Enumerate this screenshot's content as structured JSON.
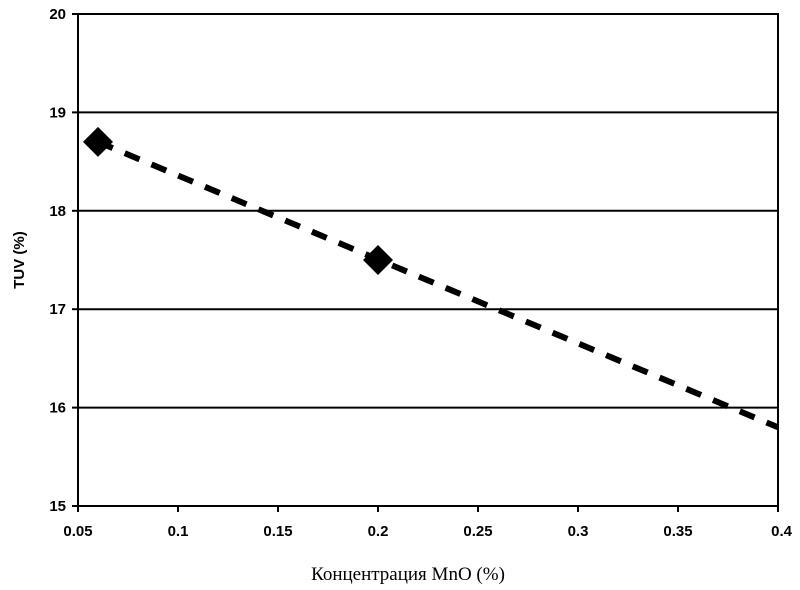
{
  "chart_data": {
    "type": "scatter",
    "title": "",
    "xlabel": "Концентрация MnO (%)",
    "ylabel": "TUV (%)",
    "xlim": [
      0.05,
      0.4
    ],
    "ylim": [
      15,
      20
    ],
    "x_ticks": [
      "0.05",
      "0.1",
      "0.15",
      "0.2",
      "0.25",
      "0.3",
      "0.35",
      "0.4"
    ],
    "y_ticks": [
      "15",
      "16",
      "17",
      "18",
      "19",
      "20"
    ],
    "grid": "horizontal",
    "legend": "none",
    "series": [
      {
        "marker": "diamond",
        "color": "#000000",
        "points": [
          {
            "x": 0.06,
            "y": 18.7
          },
          {
            "x": 0.2,
            "y": 17.5
          }
        ]
      }
    ],
    "trendline": {
      "style": "dashed",
      "color": "#000000",
      "from": {
        "x": 0.06,
        "y": 18.7
      },
      "to": {
        "x": 0.4,
        "y": 15.8
      }
    }
  }
}
